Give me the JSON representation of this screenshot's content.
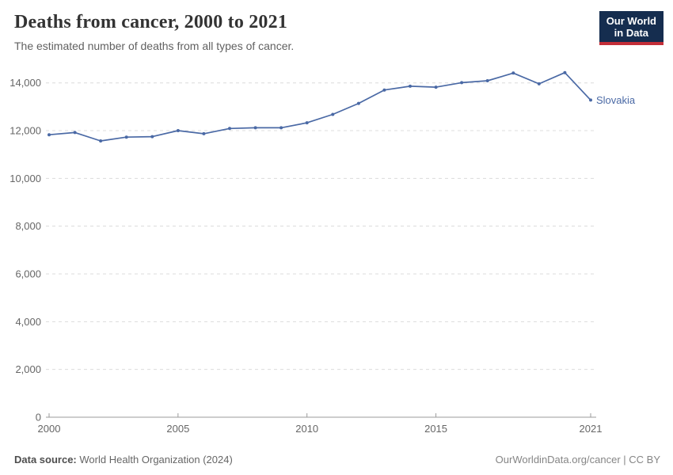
{
  "header": {
    "title": "Deaths from cancer, 2000 to 2021",
    "subtitle": "The estimated number of deaths from all types of cancer.",
    "logo": {
      "line1": "Our World",
      "line2": "in Data"
    }
  },
  "chart_data": {
    "type": "line",
    "title": "Deaths from cancer, 2000 to 2021",
    "entity": "Slovakia",
    "x": [
      2000,
      2001,
      2002,
      2003,
      2004,
      2005,
      2006,
      2007,
      2008,
      2009,
      2010,
      2011,
      2012,
      2013,
      2014,
      2015,
      2016,
      2017,
      2018,
      2019,
      2020,
      2021
    ],
    "values": [
      11830,
      11920,
      11570,
      11730,
      11750,
      12000,
      11870,
      12090,
      12120,
      12120,
      12330,
      12680,
      13140,
      13700,
      13860,
      13820,
      14010,
      14090,
      14410,
      13960,
      14430,
      13280
    ],
    "x_ticks": [
      2000,
      2005,
      2010,
      2015,
      2021
    ],
    "y_ticks": [
      0,
      2000,
      4000,
      6000,
      8000,
      10000,
      12000,
      14000
    ],
    "xlim": [
      2000,
      2021
    ],
    "ylim": [
      0,
      14000
    ],
    "grid": true,
    "gridline_style": "dashed",
    "legend_position": "end-of-line-label",
    "line_color": "#4a69a5"
  },
  "colors": {
    "gridline": "#dcdcdc",
    "axis": "#9b9b9b",
    "line": "#4a69a5",
    "logo_bg": "#152d4f",
    "logo_accent": "#c32e38"
  },
  "footer": {
    "source_label": "Data source:",
    "source_text": "World Health Organization (2024)",
    "attribution": "OurWorldinData.org/cancer | CC BY"
  }
}
